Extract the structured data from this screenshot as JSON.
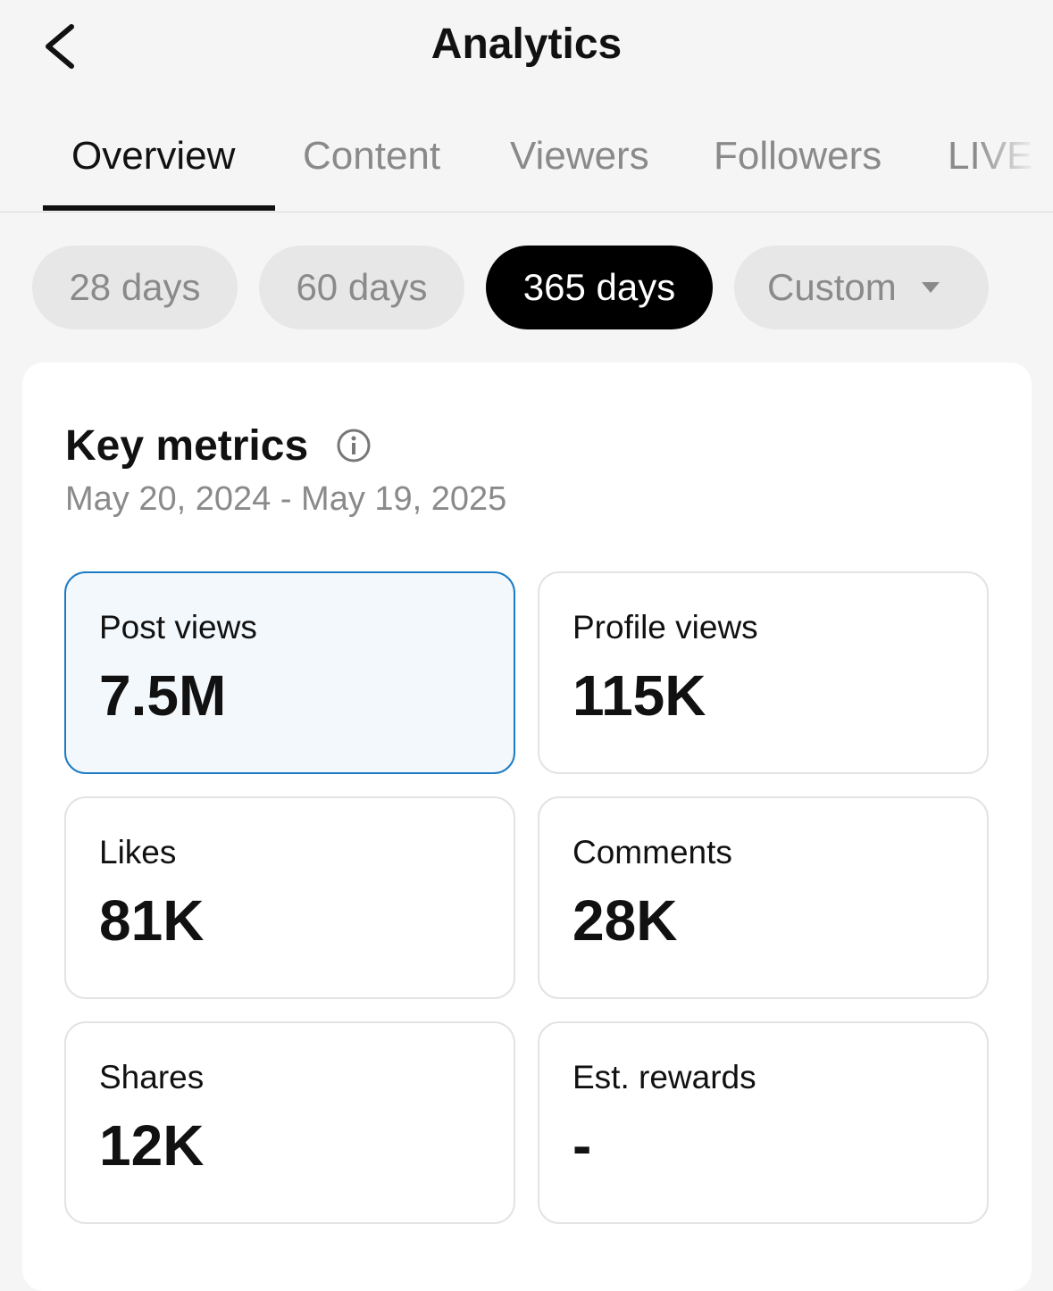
{
  "header": {
    "title": "Analytics"
  },
  "tabs": [
    "Overview",
    "Content",
    "Viewers",
    "Followers",
    "LIVE"
  ],
  "ranges": [
    "28 days",
    "60 days",
    "365 days",
    "Custom"
  ],
  "section": {
    "title": "Key metrics",
    "date_range": "May 20, 2024 - May 19, 2025"
  },
  "metrics": [
    {
      "label": "Post views",
      "value": "7.5M"
    },
    {
      "label": "Profile views",
      "value": "115K"
    },
    {
      "label": "Likes",
      "value": "81K"
    },
    {
      "label": "Comments",
      "value": "28K"
    },
    {
      "label": "Shares",
      "value": "12K"
    },
    {
      "label": "Est. rewards",
      "value": "-"
    }
  ]
}
